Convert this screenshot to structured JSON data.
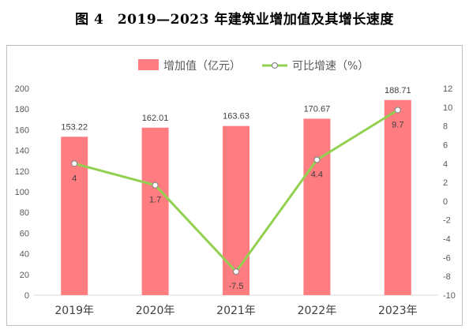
{
  "title": "图 4　2019—2023 年建筑业增加值及其增长速度",
  "chart_data": {
    "type": "bar",
    "categories": [
      "2019年",
      "2020年",
      "2021年",
      "2022年",
      "2023年"
    ],
    "series": [
      {
        "name": "增加值（亿元）",
        "type": "bar",
        "axis": "left",
        "values": [
          153.22,
          162.01,
          163.63,
          170.67,
          188.71
        ],
        "labels": [
          "153.22",
          "162.01",
          "163.63",
          "170.67",
          "188.71"
        ],
        "color": "#ff7c80"
      },
      {
        "name": "可比增速（%）",
        "type": "line",
        "axis": "right",
        "values": [
          4,
          1.7,
          -7.5,
          4.4,
          9.7
        ],
        "labels": [
          "4",
          "1.7",
          "-7.5",
          "4.4",
          "9.7"
        ],
        "color": "#92d050"
      }
    ],
    "ylim_left": [
      0,
      200
    ],
    "yticks_left": [
      "0",
      "20",
      "40",
      "60",
      "80",
      "100",
      "120",
      "140",
      "160",
      "180",
      "200"
    ],
    "ylim_right": [
      -10,
      12
    ],
    "yticks_right": [
      "-10",
      "-8",
      "-6",
      "-4",
      "-2",
      "0",
      "2",
      "4",
      "6",
      "8",
      "10",
      "12"
    ],
    "legend_position": "top",
    "grid": false
  }
}
